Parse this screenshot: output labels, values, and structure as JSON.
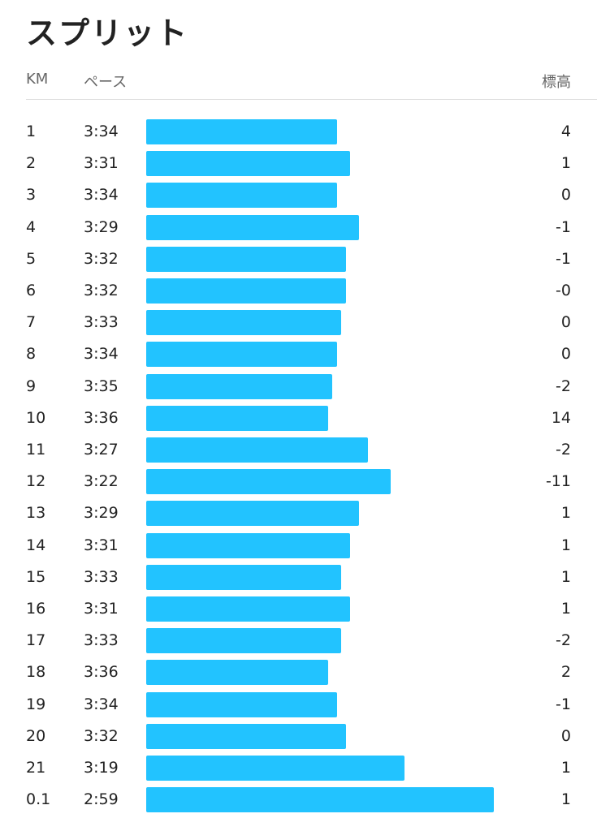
{
  "title": "スプリット",
  "header": {
    "km": "KM",
    "pace": "ペース",
    "elevation": "標高"
  },
  "rows": [
    {
      "km": "1",
      "pace": "3:34",
      "elevation": "4"
    },
    {
      "km": "2",
      "pace": "3:31",
      "elevation": "1"
    },
    {
      "km": "3",
      "pace": "3:34",
      "elevation": "0"
    },
    {
      "km": "4",
      "pace": "3:29",
      "elevation": "-1"
    },
    {
      "km": "5",
      "pace": "3:32",
      "elevation": "-1"
    },
    {
      "km": "6",
      "pace": "3:32",
      "elevation": "-0"
    },
    {
      "km": "7",
      "pace": "3:33",
      "elevation": "0"
    },
    {
      "km": "8",
      "pace": "3:34",
      "elevation": "0"
    },
    {
      "km": "9",
      "pace": "3:35",
      "elevation": "-2"
    },
    {
      "km": "10",
      "pace": "3:36",
      "elevation": "14"
    },
    {
      "km": "11",
      "pace": "3:27",
      "elevation": "-2"
    },
    {
      "km": "12",
      "pace": "3:22",
      "elevation": "-11"
    },
    {
      "km": "13",
      "pace": "3:29",
      "elevation": "1"
    },
    {
      "km": "14",
      "pace": "3:31",
      "elevation": "1"
    },
    {
      "km": "15",
      "pace": "3:33",
      "elevation": "1"
    },
    {
      "km": "16",
      "pace": "3:31",
      "elevation": "1"
    },
    {
      "km": "17",
      "pace": "3:33",
      "elevation": "-2"
    },
    {
      "km": "18",
      "pace": "3:36",
      "elevation": "2"
    },
    {
      "km": "19",
      "pace": "3:34",
      "elevation": "-1"
    },
    {
      "km": "20",
      "pace": "3:32",
      "elevation": "0"
    },
    {
      "km": "21",
      "pace": "3:19",
      "elevation": "1"
    },
    {
      "km": "0.1",
      "pace": "2:59",
      "elevation": "1"
    }
  ]
}
